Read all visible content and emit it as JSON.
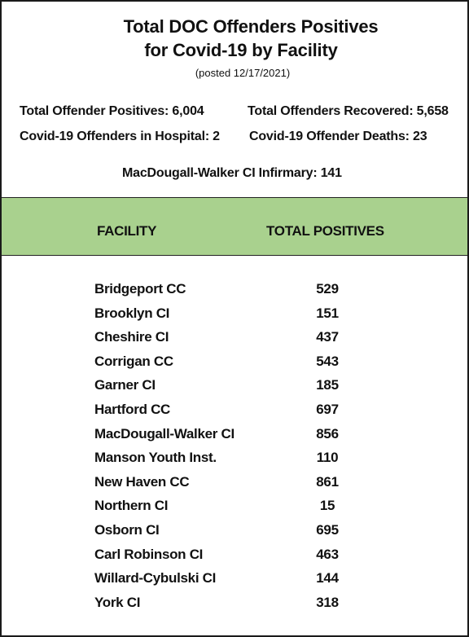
{
  "header": {
    "title_line1": "Total  DOC Offenders Positives",
    "title_line2": "for Covid-19 by Facility",
    "posted": "(posted 12/17/2021)"
  },
  "stats": {
    "total_positives": "Total Offender Positives: 6,004",
    "total_recovered": "Total Offenders Recovered: 5,658",
    "in_hospital": "Covid-19 Offenders in  Hospital: 2",
    "deaths": "Covid-19 Offender Deaths: 23",
    "infirmary": "MacDougall-Walker CI Infirmary:  141"
  },
  "table": {
    "band_color": "#a9d18e",
    "headers": {
      "facility": "FACILITY",
      "total": "TOTAL POSITIVES"
    },
    "rows": [
      {
        "facility": "Bridgeport CC",
        "total": "529"
      },
      {
        "facility": "Brooklyn CI",
        "total": "151"
      },
      {
        "facility": "Cheshire CI",
        "total": "437"
      },
      {
        "facility": "Corrigan CC",
        "total": "543"
      },
      {
        "facility": "Garner CI",
        "total": "185"
      },
      {
        "facility": "Hartford CC",
        "total": "697"
      },
      {
        "facility": "MacDougall-Walker CI",
        "total": "856"
      },
      {
        "facility": "Manson Youth Inst.",
        "total": "110"
      },
      {
        "facility": "New Haven CC",
        "total": "861"
      },
      {
        "facility": "Northern CI",
        "total": "15"
      },
      {
        "facility": "Osborn CI",
        "total": "695"
      },
      {
        "facility": "Carl Robinson CI",
        "total": "463"
      },
      {
        "facility": "Willard-Cybulski CI",
        "total": "144"
      },
      {
        "facility": "York CI",
        "total": "318"
      }
    ]
  }
}
